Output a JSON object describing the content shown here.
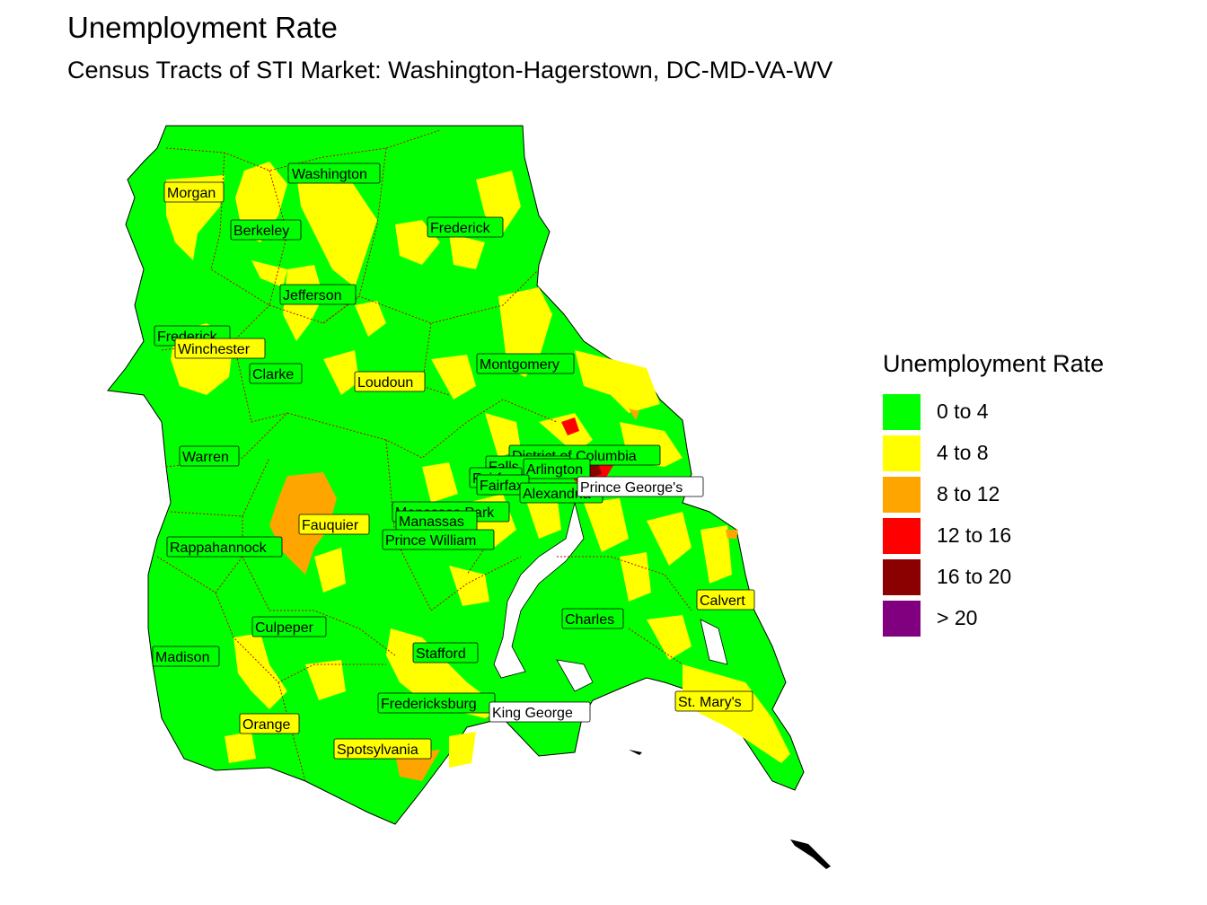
{
  "title": "Unemployment Rate",
  "subtitle": "Census Tracts of STI Market: Washington-Hagerstown, DC-MD-VA-WV",
  "legend": {
    "title": "Unemployment Rate",
    "items": [
      {
        "label": "0 to 4",
        "color": "#00FF00"
      },
      {
        "label": "4 to 8",
        "color": "#FFFF00"
      },
      {
        "label": "8 to 12",
        "color": "#FFA500"
      },
      {
        "label": "12 to 16",
        "color": "#FF0000"
      },
      {
        "label": "16 to 20",
        "color": "#8B0000"
      },
      {
        "label": "> 20",
        "color": "#800080"
      }
    ]
  },
  "counties": [
    "Washington",
    "Morgan",
    "Berkeley",
    "Frederick",
    "Jefferson",
    "Frederick",
    "Winchester",
    "Clarke",
    "Loudoun",
    "Montgomery",
    "Warren",
    "District of Columbia",
    "Falls Church",
    "Arlington",
    "Fairfax",
    "Fairfax",
    "Alexandria",
    "Prince George's",
    "Manassas Park",
    "Manassas",
    "Fauquier",
    "Prince William",
    "Rappahannock",
    "Calvert",
    "Charles",
    "Culpeper",
    "Madison",
    "Stafford",
    "Fredericksburg",
    "King George",
    "St. Mary's",
    "Orange",
    "Spotsylvania"
  ]
}
